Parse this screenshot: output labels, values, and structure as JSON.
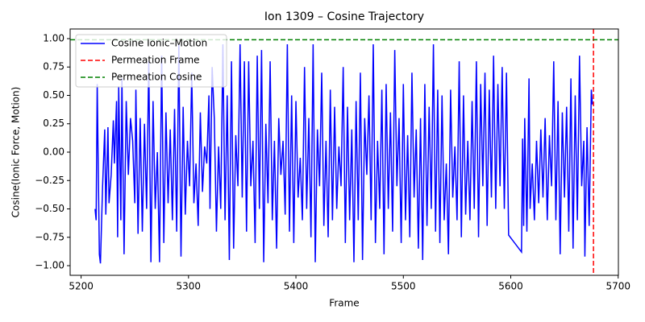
{
  "chart_data": {
    "type": "line",
    "title": "Ion 1309 – Cosine Trajectory",
    "xlabel": "Frame",
    "ylabel": "Cosine(Ionic Force, Motion)",
    "xlim": [
      5189.8,
      5700.2
    ],
    "ylim": [
      -1.085,
      1.085
    ],
    "xticks": [
      5200,
      5300,
      5400,
      5500,
      5600,
      5700
    ],
    "yticks": [
      {
        "value": -1,
        "label": "−1.00"
      },
      {
        "value": -0.75,
        "label": "−0.75"
      },
      {
        "value": -0.5,
        "label": "−0.50"
      },
      {
        "value": -0.25,
        "label": "−0.25"
      },
      {
        "value": 0,
        "label": "0.00"
      },
      {
        "value": 0.25,
        "label": "0.25"
      },
      {
        "value": 0.5,
        "label": "0.50"
      },
      {
        "value": 0.75,
        "label": "0.75"
      },
      {
        "value": 1,
        "label": "1.00"
      }
    ],
    "legend": "upper left",
    "x": [
      5213,
      5214,
      5215,
      5217,
      5218,
      5220,
      5222,
      5223,
      5225,
      5226,
      5228,
      5230,
      5231,
      5233,
      5234,
      5235,
      5237,
      5238,
      5240,
      5242,
      5244,
      5246,
      5248,
      5250,
      5251,
      5253,
      5255,
      5257,
      5259,
      5261,
      5263,
      5265,
      5267,
      5269,
      5271,
      5273,
      5275,
      5277,
      5279,
      5281,
      5283,
      5285,
      5287,
      5289,
      5291,
      5293,
      5295,
      5297,
      5299,
      5301,
      5303,
      5305,
      5307,
      5309,
      5311,
      5313,
      5315,
      5317,
      5319,
      5320,
      5322,
      5324,
      5326,
      5328,
      5330,
      5332,
      5334,
      5336,
      5338,
      5340,
      5342,
      5344,
      5346,
      5348,
      5350,
      5352,
      5354,
      5356,
      5358,
      5360,
      5362,
      5364,
      5366,
      5368,
      5370,
      5372,
      5374,
      5376,
      5378,
      5380,
      5382,
      5384,
      5386,
      5388,
      5390,
      5392,
      5394,
      5396,
      5398,
      5400,
      5402,
      5404,
      5406,
      5408,
      5410,
      5412,
      5414,
      5416,
      5418,
      5420,
      5422,
      5424,
      5426,
      5428,
      5430,
      5432,
      5434,
      5436,
      5438,
      5440,
      5442,
      5444,
      5446,
      5448,
      5450,
      5452,
      5454,
      5456,
      5458,
      5460,
      5462,
      5464,
      5466,
      5468,
      5470,
      5472,
      5474,
      5476,
      5478,
      5480,
      5482,
      5484,
      5486,
      5488,
      5490,
      5492,
      5494,
      5496,
      5498,
      5500,
      5502,
      5504,
      5506,
      5508,
      5510,
      5512,
      5514,
      5516,
      5518,
      5520,
      5522,
      5524,
      5526,
      5528,
      5530,
      5532,
      5534,
      5536,
      5538,
      5540,
      5542,
      5544,
      5546,
      5548,
      5550,
      5552,
      5554,
      5556,
      5558,
      5560,
      5562,
      5564,
      5566,
      5568,
      5570,
      5572,
      5574,
      5576,
      5578,
      5580,
      5582,
      5584,
      5586,
      5588,
      5590,
      5592,
      5594,
      5596,
      5598,
      5610,
      5611,
      5612,
      5613,
      5615,
      5617,
      5618,
      5620,
      5622,
      5624,
      5626,
      5628,
      5630,
      5632,
      5634,
      5636,
      5638,
      5640,
      5642,
      5644,
      5646,
      5648,
      5650,
      5652,
      5654,
      5656,
      5658,
      5660,
      5662,
      5664,
      5666,
      5668,
      5669,
      5671,
      5673,
      5675,
      5676
    ],
    "series": [
      {
        "name": "Cosine Ionic–Motion",
        "color": "#0000ff",
        "values": [
          -0.5,
          -0.6,
          0.6,
          -0.9,
          -0.98,
          -0.3,
          0.2,
          -0.55,
          0.22,
          -0.45,
          -0.2,
          0.28,
          -0.1,
          0.45,
          -0.75,
          0.58,
          -0.6,
          0.65,
          -0.9,
          0.45,
          -0.2,
          0.3,
          0.1,
          -0.45,
          0.55,
          -0.72,
          0.3,
          -0.7,
          0.25,
          -0.5,
          0.8,
          -0.97,
          0.45,
          -0.5,
          0.0,
          -0.97,
          0.85,
          -0.8,
          0.35,
          -0.45,
          0.2,
          -0.6,
          0.38,
          -0.7,
          0.95,
          -0.92,
          0.4,
          -0.55,
          0.1,
          -0.3,
          0.7,
          -0.45,
          -0.1,
          -0.65,
          0.35,
          -0.35,
          0.05,
          -0.1,
          0.5,
          -0.5,
          0.75,
          0.3,
          -0.7,
          0.05,
          -0.5,
          0.95,
          -0.6,
          0.5,
          -0.95,
          0.8,
          -0.85,
          0.15,
          -0.3,
          0.95,
          -0.4,
          0.8,
          -0.7,
          0.8,
          -0.3,
          0.1,
          -0.8,
          0.85,
          -0.5,
          0.9,
          -0.97,
          0.25,
          -0.45,
          0.8,
          -0.6,
          0.1,
          -0.85,
          0.3,
          -0.2,
          0.1,
          -0.55,
          0.95,
          -0.7,
          0.5,
          -0.8,
          0.45,
          -0.4,
          -0.05,
          -0.6,
          0.75,
          -0.5,
          0.3,
          -0.75,
          0.95,
          -0.97,
          0.2,
          -0.3,
          0.7,
          -0.65,
          0.1,
          -0.75,
          0.55,
          -0.6,
          0.4,
          -0.5,
          0.05,
          -0.3,
          0.75,
          -0.8,
          0.4,
          -0.6,
          0.2,
          -0.97,
          0.45,
          -0.6,
          0.7,
          -0.95,
          0.3,
          -0.2,
          0.5,
          -0.6,
          0.95,
          -0.8,
          0.1,
          -0.5,
          0.55,
          -0.9,
          0.6,
          -0.5,
          0.35,
          -0.7,
          0.9,
          -0.3,
          0.3,
          -0.8,
          0.6,
          -0.6,
          0.15,
          -0.75,
          0.7,
          -0.4,
          0.2,
          -0.85,
          0.3,
          -0.95,
          0.6,
          -0.65,
          0.4,
          -0.5,
          0.95,
          -0.7,
          0.55,
          -0.8,
          0.5,
          -0.6,
          -0.1,
          -0.9,
          0.55,
          -0.4,
          0.05,
          -0.6,
          0.8,
          -0.75,
          0.5,
          -0.55,
          0.1,
          -0.6,
          0.45,
          -0.5,
          0.8,
          -0.75,
          0.6,
          -0.3,
          0.7,
          -0.65,
          0.55,
          -0.4,
          0.85,
          -0.5,
          0.6,
          -0.3,
          0.75,
          -0.5,
          0.7,
          -0.73,
          -0.88,
          0.12,
          -0.65,
          0.3,
          -0.7,
          0.65,
          -0.5,
          -0.1,
          -0.6,
          0.1,
          -0.45,
          0.2,
          -0.4,
          0.3,
          -0.6,
          0.15,
          -0.3,
          0.8,
          -0.6,
          0.45,
          -0.9,
          0.35,
          -0.4,
          0.4,
          -0.7,
          0.65,
          -0.85,
          0.5,
          -0.6,
          0.85,
          -0.3,
          0.1,
          -0.92,
          0.22,
          -0.65,
          0.55,
          0.42
        ]
      }
    ],
    "reference_lines": [
      {
        "name": "Permeation Frame",
        "color": "#ff0000",
        "x": 5677
      },
      {
        "name": "Permeation Cosine",
        "color": "#008000",
        "y": 0.99
      }
    ]
  }
}
